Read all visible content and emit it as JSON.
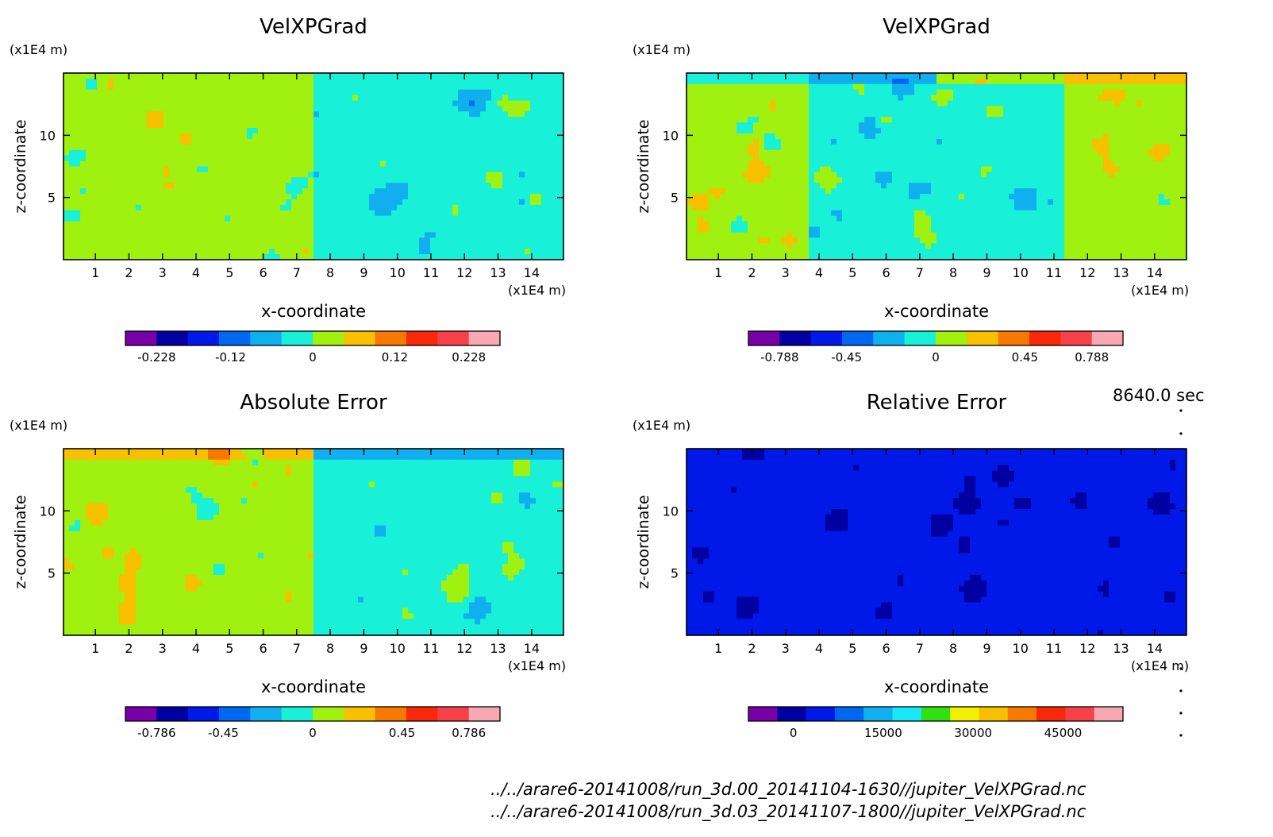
{
  "chart_data": [
    {
      "type": "heatmap",
      "title": "VelXPGrad",
      "xlabel": "x-coordinate",
      "ylabel": "z-coordinate",
      "x_unit": "(x1E4 m)",
      "y_unit": "(x1E4 m)",
      "x_ticks": [
        1,
        2,
        3,
        4,
        5,
        6,
        7,
        8,
        9,
        10,
        11,
        12,
        13,
        14
      ],
      "y_ticks": [
        5,
        10
      ],
      "xlim": [
        0.05,
        14.95
      ],
      "ylim": [
        0,
        15
      ],
      "colorbar": {
        "min": -0.228,
        "max": 0.228,
        "tick_values": [
          -0.228,
          -0.12,
          0,
          0.12,
          0.228
        ],
        "tick_labels": [
          "-0.228",
          "-0.12",
          "0",
          "0.12",
          "0.228"
        ],
        "colors": [
          "#7700a8",
          "#0000a0",
          "#0018e8",
          "#0068f0",
          "#10b0f0",
          "#18f0d8",
          "#a0f010",
          "#f8c000",
          "#f87800",
          "#f82808",
          "#f84048",
          "#f8a8b0"
        ]
      }
    },
    {
      "type": "heatmap",
      "title": "VelXPGrad",
      "xlabel": "x-coordinate",
      "ylabel": "z-coordinate",
      "x_unit": "(x1E4 m)",
      "y_unit": "(x1E4 m)",
      "x_ticks": [
        1,
        2,
        3,
        4,
        5,
        6,
        7,
        8,
        9,
        10,
        11,
        12,
        13,
        14
      ],
      "y_ticks": [
        5,
        10
      ],
      "xlim": [
        0.05,
        14.95
      ],
      "ylim": [
        0,
        15
      ],
      "colorbar": {
        "min": -0.788,
        "max": 0.788,
        "tick_values": [
          -0.788,
          -0.45,
          0,
          0.45,
          0.788
        ],
        "tick_labels": [
          "-0.788",
          "-0.45",
          "0",
          "0.45",
          "0.788"
        ],
        "colors": [
          "#7700a8",
          "#0000a0",
          "#0018e8",
          "#0068f0",
          "#10b0f0",
          "#18f0d8",
          "#a0f010",
          "#f8c000",
          "#f87800",
          "#f82808",
          "#f84048",
          "#f8a8b0"
        ]
      }
    },
    {
      "type": "heatmap",
      "title": "Absolute Error",
      "xlabel": "x-coordinate",
      "ylabel": "z-coordinate",
      "x_unit": "(x1E4 m)",
      "y_unit": "(x1E4 m)",
      "x_ticks": [
        1,
        2,
        3,
        4,
        5,
        6,
        7,
        8,
        9,
        10,
        11,
        12,
        13,
        14
      ],
      "y_ticks": [
        5,
        10
      ],
      "xlim": [
        0.05,
        14.95
      ],
      "ylim": [
        0,
        15
      ],
      "colorbar": {
        "min": -0.786,
        "max": 0.786,
        "tick_values": [
          -0.786,
          -0.45,
          0,
          0.45,
          0.786
        ],
        "tick_labels": [
          "-0.786",
          "-0.45",
          "0",
          "0.45",
          "0.786"
        ],
        "colors": [
          "#7700a8",
          "#0000a0",
          "#0018e8",
          "#0068f0",
          "#10b0f0",
          "#18f0d8",
          "#a0f010",
          "#f8c000",
          "#f87800",
          "#f82808",
          "#f84048",
          "#f8a8b0"
        ]
      }
    },
    {
      "type": "heatmap",
      "title": "Relative Error",
      "xlabel": "x-coordinate",
      "ylabel": "z-coordinate",
      "x_unit": "(x1E4 m)",
      "y_unit": "(x1E4 m)",
      "x_ticks": [
        1,
        2,
        3,
        4,
        5,
        6,
        7,
        8,
        9,
        10,
        11,
        12,
        13,
        14
      ],
      "y_ticks": [
        5,
        10
      ],
      "xlim": [
        0.05,
        14.95
      ],
      "ylim": [
        0,
        15
      ],
      "colorbar": {
        "min": -7500,
        "max": 55000,
        "tick_values": [
          0,
          15000,
          30000,
          45000
        ],
        "tick_labels": [
          "0",
          "15000",
          "30000",
          "45000"
        ],
        "colors": [
          "#7700a8",
          "#0000a0",
          "#0018e8",
          "#0068f0",
          "#10b0f0",
          "#18e8f8",
          "#30e010",
          "#f0f000",
          "#f8c000",
          "#f87800",
          "#f82808",
          "#f84048",
          "#f8a8b0"
        ]
      }
    }
  ],
  "annotations": {
    "time_label": "8640.0 sec",
    "files": [
      "../../arare6-20141008/run_3d.00_20141104-1630//jupiter_VelXPGrad.nc",
      "../../arare6-20141008/run_3d.03_20141107-1800//jupiter_VelXPGrad.nc"
    ]
  }
}
